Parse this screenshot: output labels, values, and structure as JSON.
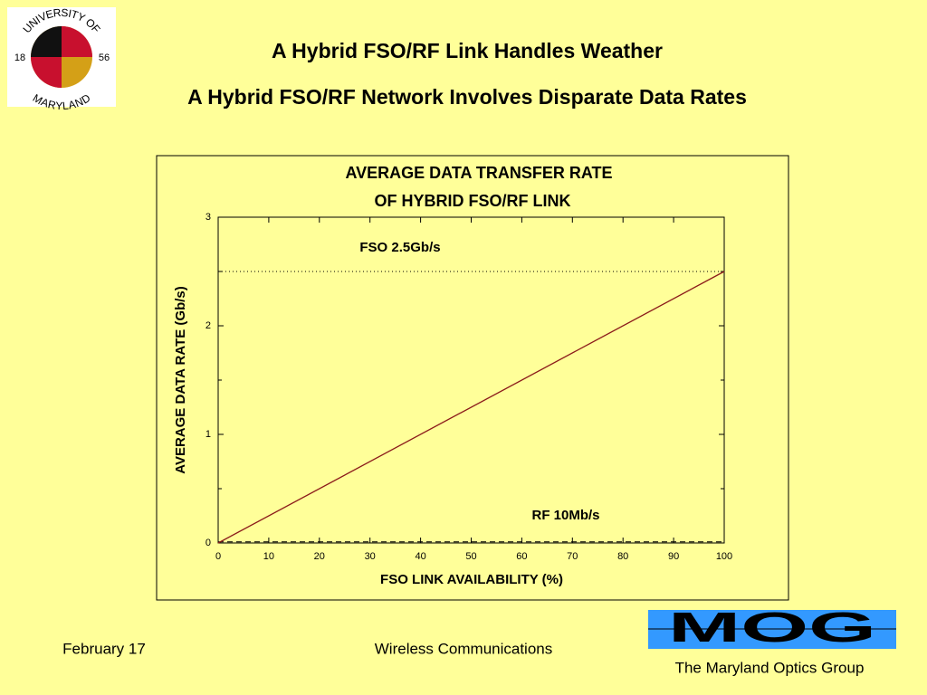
{
  "slide": {
    "title": "A Hybrid FSO/RF Link Handles Weather",
    "subtitle": "A Hybrid FSO/RF Network Involves Disparate Data Rates",
    "logo_top": "UNIVERSITY OF",
    "logo_left": "18",
    "logo_right": "56",
    "logo_bottom": "MARYLAND",
    "date": "February 17",
    "course": "Wireless Communications",
    "mog_logo": "MOG",
    "group": "The Maryland Optics Group"
  },
  "chart_data": {
    "type": "line",
    "title": "AVERAGE DATA TRANSFER RATE",
    "subtitle": "OF HYBRID FSO/RF LINK",
    "x_label": "FSO LINK AVAILABILITY (%)",
    "y_label": "AVERAGE DATA RATE (Gb/s)",
    "xlim": [
      0,
      100
    ],
    "xticks": [
      0,
      10,
      20,
      30,
      40,
      50,
      60,
      70,
      80,
      90,
      100
    ],
    "ylim": [
      0,
      3
    ],
    "yticks": [
      0,
      1,
      2,
      3
    ],
    "yminor": [
      0.5,
      1.5,
      2.5
    ],
    "series": [
      {
        "color": "#8b1a1a",
        "x": [
          0,
          100
        ],
        "values": [
          0,
          2.5
        ]
      }
    ],
    "hlines": [
      {
        "value": 2.5,
        "style": "dotted",
        "label": "FSO 2.5Gb/s"
      },
      {
        "value": 0.01,
        "style": "dashed",
        "label": "RF 10Mb/s"
      }
    ]
  }
}
